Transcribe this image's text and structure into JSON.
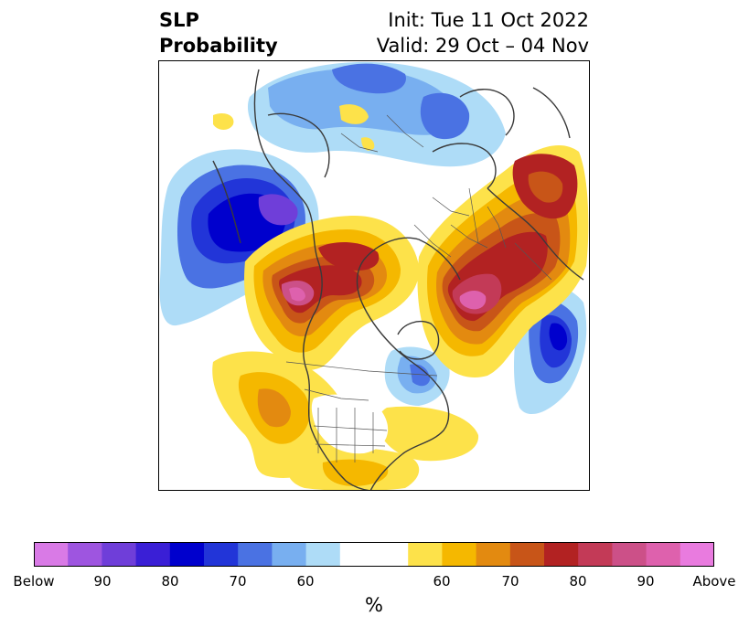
{
  "title": {
    "variable": "SLP",
    "kind": "Probability",
    "init": "Init: Tue 11 Oct 2022",
    "valid": "Valid: 29 Oct – 04 Nov"
  },
  "colorbar": {
    "unit": "%",
    "ticks": [
      "Below",
      "90",
      "80",
      "70",
      "60",
      "60",
      "70",
      "80",
      "90",
      "Above"
    ],
    "colors": [
      "#d97ae6",
      "#9e55e0",
      "#6f3ed9",
      "#3a1fd6",
      "#0000cd",
      "#2235d8",
      "#4a72e3",
      "#78aff0",
      "#aedcf7",
      "#ffffff",
      "#ffffff",
      "#fde24a",
      "#f5b800",
      "#e38a10",
      "#c85518",
      "#b22222",
      "#c33a57",
      "#cc5088",
      "#de61ad",
      "#e97bdf"
    ],
    "blue": "#0000cd",
    "red": "#b22222"
  }
}
